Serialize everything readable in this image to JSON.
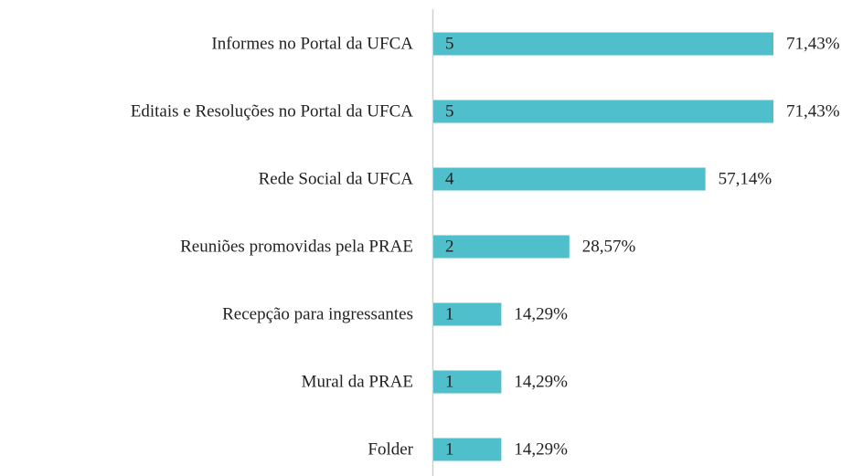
{
  "chart_data": {
    "type": "barh",
    "categories": [
      "Informes no Portal da UFCA",
      "Editais e Resoluções no Portal da UFCA",
      "Rede Social da UFCA",
      "Reuniões promovidas pela PRAE",
      "Recepção para ingressantes",
      "Mural da PRAE",
      "Folder"
    ],
    "values": [
      5,
      5,
      4,
      2,
      1,
      1,
      1
    ],
    "percent": [
      71.43,
      71.43,
      57.14,
      28.57,
      14.29,
      14.29,
      14.29
    ],
    "percent_labels": [
      "71,43%",
      "71,43%",
      "57,14%",
      "28,57%",
      "14,29%",
      "14,29%",
      "14,29%"
    ],
    "color": "#4fbfcb",
    "xlim": [
      0,
      5
    ]
  }
}
